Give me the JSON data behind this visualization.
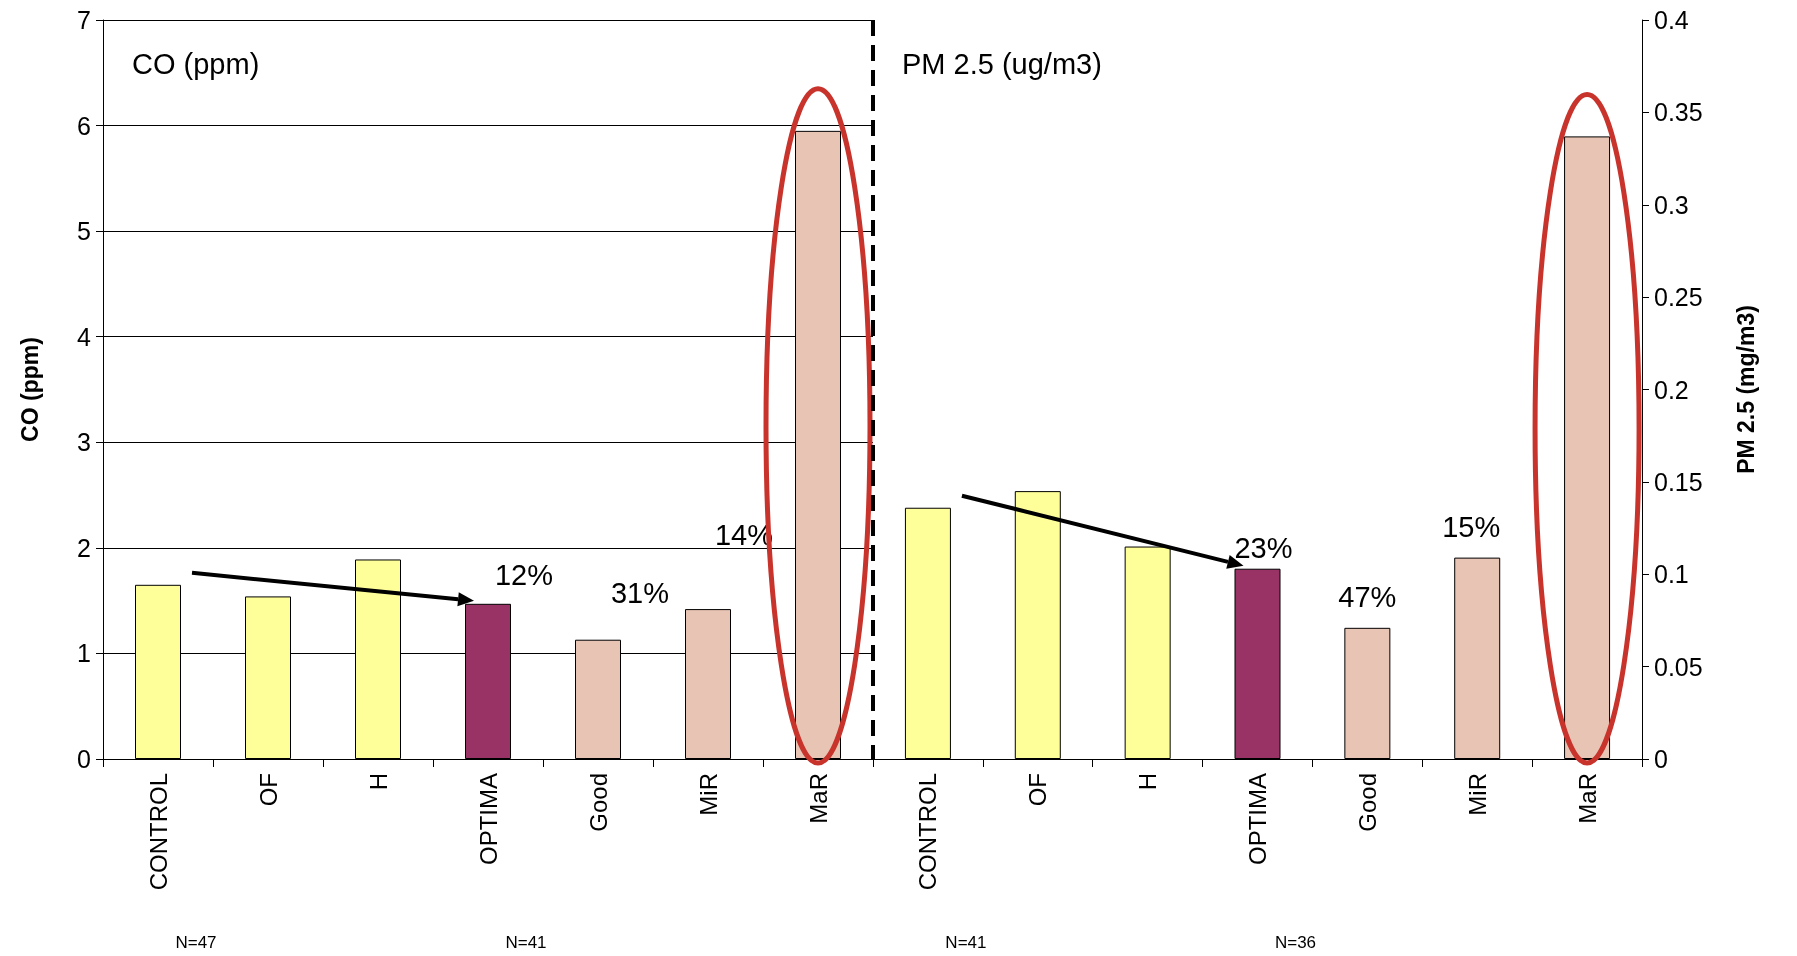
{
  "chart_data": [
    {
      "type": "bar",
      "title": "CO (ppm)",
      "ylabel": "CO (ppm)",
      "categories": [
        "CONTROL",
        "OF",
        "H",
        "OPTIMA",
        "Good",
        "MiR",
        "MaR"
      ],
      "series": [
        {
          "colors": [
            "#ffff99",
            "#ffff99",
            "#ffff99",
            "#993366",
            "#e8c4b4",
            "#e8c4b4",
            "#e8c4b4"
          ],
          "values": [
            1.65,
            1.54,
            1.89,
            1.47,
            1.13,
            1.42,
            5.95
          ]
        }
      ],
      "ylim": [
        0,
        7
      ],
      "yticks": [
        0,
        1,
        2,
        3,
        4,
        5,
        6,
        7
      ],
      "grid": "y",
      "annotations": [
        "12%",
        "31%",
        "14%",
        "N=47",
        "N=41"
      ]
    },
    {
      "type": "bar",
      "title": "PM 2.5 (ug/m3)",
      "y2label": "PM 2.5 (mg/m3)",
      "categories": [
        "CONTROL",
        "OF",
        "H",
        "OPTIMA",
        "Good",
        "MiR",
        "MaR"
      ],
      "series": [
        {
          "axis": "y2",
          "colors": [
            "#ffff99",
            "#ffff99",
            "#ffff99",
            "#993366",
            "#e8c4b4",
            "#e8c4b4",
            "#e8c4b4"
          ],
          "values": [
            0.136,
            0.145,
            0.115,
            0.103,
            0.071,
            0.109,
            0.337
          ]
        }
      ],
      "y2lim": [
        0,
        0.4
      ],
      "y2ticks": [
        0,
        0.05,
        0.1,
        0.15,
        0.2,
        0.25,
        0.3,
        0.35,
        0.4
      ],
      "annotations": [
        "23%",
        "47%",
        "15%",
        "N=41",
        "N=36"
      ]
    }
  ]
}
